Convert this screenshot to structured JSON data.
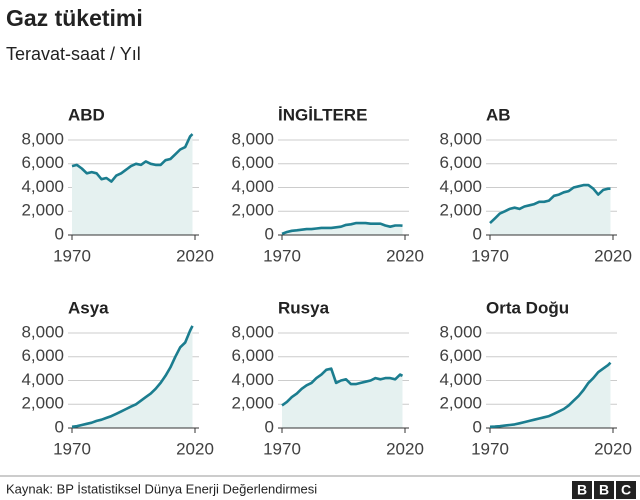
{
  "title": "Gaz tüketimi",
  "subtitle": "Teravat-saat / Yıl",
  "source": "Kaynak: BP İstatistiksel Dünya Enerji Değerlendirmesi",
  "logo": [
    "B",
    "B",
    "C"
  ],
  "chart_data": [
    {
      "type": "area",
      "title": "ABD",
      "color": "#1b7d8f",
      "fill": "#e5f1f0",
      "grid": true,
      "x": [
        1970,
        1972,
        1974,
        1976,
        1978,
        1980,
        1982,
        1984,
        1986,
        1988,
        1990,
        1992,
        1994,
        1996,
        1998,
        2000,
        2002,
        2004,
        2006,
        2008,
        2010,
        2012,
        2014,
        2016,
        2018,
        2019
      ],
      "values": [
        5800,
        5900,
        5600,
        5200,
        5300,
        5200,
        4700,
        4800,
        4500,
        5000,
        5200,
        5500,
        5800,
        6000,
        5900,
        6200,
        6000,
        5900,
        5900,
        6300,
        6400,
        6800,
        7200,
        7400,
        8300,
        8500
      ],
      "xlim": [
        1970,
        2020
      ],
      "xticks": [
        1970,
        2020
      ],
      "ylim": [
        0,
        9000
      ],
      "yticks": [
        0,
        {
          "value": 2000,
          "label": "2,000"
        },
        {
          "value": 4000,
          "label": "4,000"
        },
        {
          "value": 6000,
          "label": "6,000"
        },
        {
          "value": 8000,
          "label": "8,000"
        }
      ]
    },
    {
      "type": "area",
      "title": "İNGİLTERE",
      "color": "#1b7d8f",
      "fill": "#e5f1f0",
      "grid": true,
      "x": [
        1970,
        1972,
        1974,
        1976,
        1978,
        1980,
        1982,
        1984,
        1986,
        1988,
        1990,
        1992,
        1994,
        1996,
        1998,
        2000,
        2002,
        2004,
        2006,
        2008,
        2010,
        2012,
        2014,
        2016,
        2018,
        2019
      ],
      "values": [
        100,
        250,
        350,
        400,
        450,
        500,
        500,
        550,
        600,
        600,
        600,
        650,
        700,
        850,
        900,
        1000,
        1000,
        1000,
        950,
        950,
        950,
        800,
        700,
        800,
        800,
        780
      ],
      "xlim": [
        1970,
        2020
      ],
      "xticks": [
        1970,
        2020
      ],
      "ylim": [
        0,
        9000
      ],
      "yticks": [
        0,
        {
          "value": 2000,
          "label": "2,000"
        },
        {
          "value": 4000,
          "label": "4,000"
        },
        {
          "value": 6000,
          "label": "6,000"
        },
        {
          "value": 8000,
          "label": "8,000"
        }
      ]
    },
    {
      "type": "area",
      "title": "AB",
      "color": "#1b7d8f",
      "fill": "#e5f1f0",
      "grid": true,
      "x": [
        1970,
        1972,
        1974,
        1976,
        1978,
        1980,
        1982,
        1984,
        1986,
        1988,
        1990,
        1992,
        1994,
        1996,
        1998,
        2000,
        2002,
        2004,
        2006,
        2008,
        2010,
        2012,
        2014,
        2016,
        2018,
        2019
      ],
      "values": [
        1000,
        1400,
        1800,
        2000,
        2200,
        2300,
        2200,
        2400,
        2500,
        2600,
        2800,
        2800,
        2900,
        3300,
        3400,
        3600,
        3700,
        4000,
        4100,
        4200,
        4200,
        3900,
        3400,
        3800,
        3900,
        3900
      ],
      "xlim": [
        1970,
        2020
      ],
      "xticks": [
        1970,
        2020
      ],
      "ylim": [
        0,
        9000
      ],
      "yticks": [
        0,
        {
          "value": 2000,
          "label": "2,000"
        },
        {
          "value": 4000,
          "label": "4,000"
        },
        {
          "value": 6000,
          "label": "6,000"
        },
        {
          "value": 8000,
          "label": "8,000"
        }
      ]
    },
    {
      "type": "area",
      "title": "Asya",
      "color": "#1b7d8f",
      "fill": "#e5f1f0",
      "grid": true,
      "x": [
        1970,
        1972,
        1974,
        1976,
        1978,
        1980,
        1982,
        1984,
        1986,
        1988,
        1990,
        1992,
        1994,
        1996,
        1998,
        2000,
        2002,
        2004,
        2006,
        2008,
        2010,
        2012,
        2014,
        2016,
        2018,
        2019
      ],
      "values": [
        100,
        150,
        250,
        350,
        450,
        600,
        700,
        850,
        1000,
        1200,
        1400,
        1600,
        1800,
        2000,
        2300,
        2600,
        2900,
        3300,
        3800,
        4400,
        5100,
        6000,
        6800,
        7200,
        8200,
        8600
      ],
      "xlim": [
        1970,
        2020
      ],
      "xticks": [
        1970,
        2020
      ],
      "ylim": [
        0,
        9000
      ],
      "yticks": [
        0,
        {
          "value": 2000,
          "label": "2,000"
        },
        {
          "value": 4000,
          "label": "4,000"
        },
        {
          "value": 6000,
          "label": "6,000"
        },
        {
          "value": 8000,
          "label": "8,000"
        }
      ]
    },
    {
      "type": "area",
      "title": "Rusya",
      "color": "#1b7d8f",
      "fill": "#e5f1f0",
      "grid": true,
      "x": [
        1970,
        1972,
        1974,
        1976,
        1978,
        1980,
        1982,
        1984,
        1986,
        1988,
        1990,
        1992,
        1994,
        1996,
        1998,
        2000,
        2002,
        2004,
        2006,
        2008,
        2010,
        2012,
        2014,
        2016,
        2018,
        2019
      ],
      "values": [
        1900,
        2200,
        2600,
        2900,
        3300,
        3600,
        3800,
        4200,
        4500,
        4900,
        5000,
        3800,
        4000,
        4100,
        3700,
        3700,
        3800,
        3900,
        4000,
        4200,
        4100,
        4200,
        4200,
        4100,
        4500,
        4400
      ],
      "xlim": [
        1970,
        2020
      ],
      "xticks": [
        1970,
        2020
      ],
      "ylim": [
        0,
        9000
      ],
      "yticks": [
        0,
        {
          "value": 2000,
          "label": "2,000"
        },
        {
          "value": 4000,
          "label": "4,000"
        },
        {
          "value": 6000,
          "label": "6,000"
        },
        {
          "value": 8000,
          "label": "8,000"
        }
      ]
    },
    {
      "type": "area",
      "title": "Orta Doğu",
      "color": "#1b7d8f",
      "fill": "#e5f1f0",
      "grid": true,
      "x": [
        1970,
        1972,
        1974,
        1976,
        1978,
        1980,
        1982,
        1984,
        1986,
        1988,
        1990,
        1992,
        1994,
        1996,
        1998,
        2000,
        2002,
        2004,
        2006,
        2008,
        2010,
        2012,
        2014,
        2016,
        2018,
        2019
      ],
      "values": [
        100,
        120,
        150,
        200,
        250,
        300,
        400,
        500,
        600,
        700,
        800,
        900,
        1000,
        1200,
        1400,
        1600,
        1900,
        2300,
        2700,
        3200,
        3800,
        4200,
        4700,
        5000,
        5300,
        5500
      ],
      "xlim": [
        1970,
        2020
      ],
      "xticks": [
        1970,
        2020
      ],
      "ylim": [
        0,
        9000
      ],
      "yticks": [
        0,
        {
          "value": 2000,
          "label": "2,000"
        },
        {
          "value": 4000,
          "label": "4,000"
        },
        {
          "value": 6000,
          "label": "6,000"
        },
        {
          "value": 8000,
          "label": "8,000"
        }
      ]
    }
  ]
}
